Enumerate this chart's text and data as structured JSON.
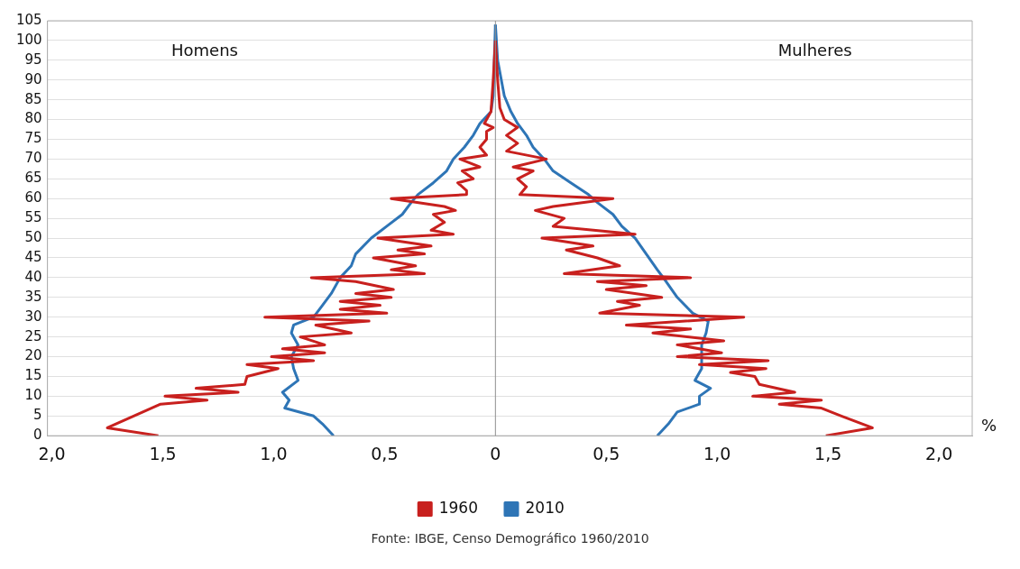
{
  "chart_data": {
    "type": "line",
    "xlabel": "%",
    "annotations": [
      "Homens",
      "Mulheres",
      "Fonte: IBGE, Censo Demográfico 1960/2010"
    ],
    "xlim": [
      -2.02,
      2.15
    ],
    "xticks": [
      {
        "value": -2,
        "label": "2,0"
      },
      {
        "value": -1.5,
        "label": "1,5"
      },
      {
        "value": -1,
        "label": "1,0"
      },
      {
        "value": -0.5,
        "label": "0,5"
      },
      0,
      {
        "value": 0.5,
        "label": "0,5"
      },
      {
        "value": 1,
        "label": "1,0"
      },
      {
        "value": 1.5,
        "label": "1,5"
      },
      {
        "value": 2,
        "label": "2,0"
      }
    ],
    "ylim": [
      0,
      105
    ],
    "yticks": [
      0,
      5,
      10,
      15,
      20,
      25,
      30,
      35,
      40,
      45,
      50,
      55,
      60,
      65,
      70,
      75,
      80,
      85,
      90,
      95,
      100,
      105
    ],
    "grid": "y",
    "legend": "bottom",
    "marker": "none",
    "line_style": "solid",
    "ref_lines": [
      {
        "axis": "x",
        "value": 0,
        "color": "#909090"
      }
    ],
    "series": [
      {
        "name": "1960",
        "color": "#c8201e",
        "x": [
          -1.52,
          -1.75,
          -1.51,
          -1.3,
          -1.49,
          -1.16,
          -1.35,
          -1.13,
          -1.12,
          -0.98,
          -1.12,
          -0.82,
          -1.01,
          -0.77,
          -0.96,
          -0.77,
          -0.88,
          -0.65,
          -0.81,
          -0.57,
          -1.04,
          -0.49,
          -0.7,
          -0.52,
          -0.7,
          -0.47,
          -0.63,
          -0.46,
          -0.63,
          -0.83,
          -0.32,
          -0.47,
          -0.36,
          -0.55,
          -0.32,
          -0.44,
          -0.29,
          -0.53,
          -0.19,
          -0.29,
          -0.23,
          -0.28,
          -0.18,
          -0.23,
          -0.47,
          -0.13,
          -0.13,
          -0.17,
          -0.1,
          -0.15,
          -0.07,
          -0.16,
          -0.04,
          -0.07,
          -0.04,
          -0.04,
          -0.01,
          -0.05,
          -0.02,
          -0.01,
          0
        ],
        "values": [
          0,
          2,
          8,
          9,
          10,
          11,
          12,
          13,
          15,
          17,
          18,
          19,
          20,
          21,
          22,
          23,
          25,
          26,
          28,
          29,
          30,
          31,
          32,
          33,
          34,
          35,
          36,
          37,
          39,
          40,
          41,
          42,
          43,
          45,
          46,
          47,
          48,
          50,
          51,
          52,
          54,
          56,
          57,
          58,
          60,
          61,
          62,
          64,
          65,
          67,
          68,
          70,
          71,
          73,
          75,
          77,
          78,
          79,
          82,
          90,
          100
        ]
      },
      {
        "name": "2010",
        "color": "#2e75b6",
        "x": [
          -0.73,
          -0.78,
          -0.82,
          -0.95,
          -0.93,
          -0.96,
          -0.89,
          -0.91,
          -0.92,
          -0.89,
          -0.92,
          -0.91,
          -0.82,
          -0.78,
          -0.74,
          -0.7,
          -0.65,
          -0.63,
          -0.56,
          -0.49,
          -0.42,
          -0.38,
          -0.35,
          -0.28,
          -0.22,
          -0.19,
          -0.14,
          -0.1,
          -0.07,
          -0.02,
          -0.01,
          0
        ],
        "values": [
          0,
          3,
          5,
          7,
          9,
          11,
          14,
          17,
          20,
          23,
          26,
          28,
          30,
          33,
          36,
          40,
          43,
          46,
          50,
          53,
          56,
          59,
          61,
          64,
          67,
          70,
          73,
          76,
          79,
          82,
          86,
          104
        ]
      },
      {
        "color": "#c8201e",
        "x": [
          1.49,
          1.7,
          1.56,
          1.47,
          1.28,
          1.47,
          1.16,
          1.35,
          1.19,
          1.17,
          1.06,
          1.22,
          0.92,
          1.23,
          0.82,
          1.02,
          0.82,
          1.03,
          0.71,
          0.88,
          0.59,
          1.12,
          0.47,
          0.65,
          0.55,
          0.75,
          0.5,
          0.68,
          0.46,
          0.88,
          0.31,
          0.56,
          0.46,
          0.32,
          0.44,
          0.21,
          0.63,
          0.26,
          0.31,
          0.18,
          0.26,
          0.53,
          0.11,
          0.14,
          0.1,
          0.17,
          0.08,
          0.23,
          0.05,
          0.1,
          0.05,
          0.1,
          0.04,
          0.02,
          0.01,
          0
        ],
        "values": [
          0,
          2,
          5,
          7,
          8,
          9,
          10,
          11,
          13,
          15,
          16,
          17,
          18,
          19,
          20,
          21,
          23,
          24,
          26,
          27,
          28,
          30,
          31,
          33,
          34,
          35,
          37,
          38,
          39,
          40,
          41,
          43,
          45,
          47,
          48,
          50,
          51,
          53,
          55,
          57,
          58,
          60,
          61,
          63,
          65,
          67,
          68,
          70,
          72,
          74,
          76,
          78,
          80,
          83,
          90,
          100
        ]
      },
      {
        "color": "#2e75b6",
        "x": [
          0.73,
          0.78,
          0.82,
          0.92,
          0.92,
          0.97,
          0.9,
          0.93,
          0.93,
          0.95,
          0.96,
          0.89,
          0.82,
          0.77,
          0.73,
          0.68,
          0.63,
          0.57,
          0.53,
          0.46,
          0.42,
          0.34,
          0.26,
          0.22,
          0.17,
          0.14,
          0.1,
          0.07,
          0.04,
          0.01,
          0
        ],
        "values": [
          0,
          3,
          6,
          8,
          10,
          12,
          14,
          17,
          23,
          26,
          29,
          31,
          35,
          39,
          42,
          46,
          50,
          53,
          56,
          59,
          61,
          64,
          67,
          70,
          73,
          76,
          79,
          82,
          86,
          95,
          104
        ]
      }
    ]
  }
}
